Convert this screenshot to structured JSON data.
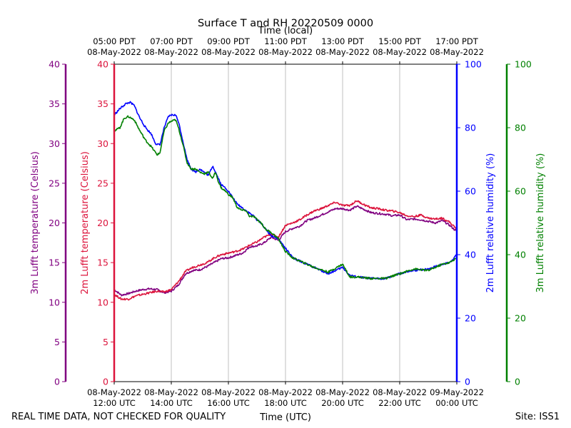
{
  "chart_data": {
    "type": "line",
    "title": "Surface T and RH 20220509 0000",
    "top_axis_label": "Time (local)",
    "bottom_axis_label": "Time (UTC)",
    "footer_left": "REAL TIME DATA, NOT CHECKED FOR QUALITY",
    "footer_right": "Site: ISS1",
    "x_range_hours": [
      0,
      12
    ],
    "bottom_ticks": [
      {
        "h": 0,
        "date": "08-May-2022",
        "time": "12:00 UTC"
      },
      {
        "h": 2,
        "date": "08-May-2022",
        "time": "14:00 UTC"
      },
      {
        "h": 4,
        "date": "08-May-2022",
        "time": "16:00 UTC"
      },
      {
        "h": 6,
        "date": "08-May-2022",
        "time": "18:00 UTC"
      },
      {
        "h": 8,
        "date": "08-May-2022",
        "time": "20:00 UTC"
      },
      {
        "h": 10,
        "date": "08-May-2022",
        "time": "22:00 UTC"
      },
      {
        "h": 12,
        "date": "09-May-2022",
        "time": "00:00 UTC"
      }
    ],
    "top_ticks": [
      {
        "h": 0,
        "time": "05:00 PDT",
        "date": "08-May-2022"
      },
      {
        "h": 2,
        "time": "07:00 PDT",
        "date": "08-May-2022"
      },
      {
        "h": 4,
        "time": "09:00 PDT",
        "date": "08-May-2022"
      },
      {
        "h": 6,
        "time": "11:00 PDT",
        "date": "08-May-2022"
      },
      {
        "h": 8,
        "time": "13:00 PDT",
        "date": "08-May-2022"
      },
      {
        "h": 10,
        "time": "15:00 PDT",
        "date": "08-May-2022"
      },
      {
        "h": 12,
        "time": "17:00 PDT",
        "date": "08-May-2022"
      }
    ],
    "axes": {
      "t3m": {
        "label": "3m Lufft temperature (Celsius)",
        "color": "#800080",
        "ylim": [
          0,
          40
        ],
        "ticks": [
          "0",
          "5",
          "10",
          "15",
          "20",
          "25",
          "30",
          "35",
          "40"
        ]
      },
      "t2m": {
        "label": "2m Lufft temperature (Celsius)",
        "color": "#dc143c",
        "ylim": [
          0,
          40
        ],
        "ticks": [
          "0",
          "5",
          "10",
          "15",
          "20",
          "25",
          "30",
          "35",
          "40"
        ]
      },
      "rh2m": {
        "label": "2m Lufft relative humidity (%)",
        "color": "#0000ff",
        "ylim": [
          0,
          100
        ],
        "ticks": [
          "0",
          "20",
          "40",
          "60",
          "80",
          "100"
        ]
      },
      "rh3m": {
        "label": "3m Lufft relative humidity (%)",
        "color": "#008000",
        "ylim": [
          0,
          100
        ],
        "ticks": [
          "0",
          "20",
          "40",
          "60",
          "80",
          "100"
        ]
      }
    },
    "series": [
      {
        "name": "3m Lufft temperature",
        "axis": "t3m",
        "color": "#800080",
        "points": [
          [
            0,
            11.6
          ],
          [
            0.25,
            10.9
          ],
          [
            0.5,
            11.1
          ],
          [
            0.75,
            11.4
          ],
          [
            1.0,
            11.6
          ],
          [
            1.25,
            11.7
          ],
          [
            1.5,
            11.6
          ],
          [
            1.75,
            11.2
          ],
          [
            2.0,
            11.4
          ],
          [
            2.25,
            12.2
          ],
          [
            2.5,
            13.6
          ],
          [
            2.75,
            14.0
          ],
          [
            3.0,
            14.1
          ],
          [
            3.25,
            14.5
          ],
          [
            3.5,
            15.0
          ],
          [
            3.75,
            15.5
          ],
          [
            4.0,
            15.6
          ],
          [
            4.25,
            15.9
          ],
          [
            4.5,
            16.2
          ],
          [
            4.75,
            17.0
          ],
          [
            5.0,
            17.1
          ],
          [
            5.25,
            17.5
          ],
          [
            5.5,
            18.2
          ],
          [
            5.75,
            17.8
          ],
          [
            6.0,
            18.9
          ],
          [
            6.25,
            19.3
          ],
          [
            6.5,
            19.6
          ],
          [
            6.75,
            20.3
          ],
          [
            7.0,
            20.6
          ],
          [
            7.25,
            21.0
          ],
          [
            7.5,
            21.4
          ],
          [
            7.75,
            21.8
          ],
          [
            8.0,
            21.8
          ],
          [
            8.25,
            21.6
          ],
          [
            8.5,
            22.1
          ],
          [
            8.75,
            21.7
          ],
          [
            9.0,
            21.3
          ],
          [
            9.25,
            21.2
          ],
          [
            9.5,
            21.1
          ],
          [
            9.75,
            20.9
          ],
          [
            10.0,
            21.0
          ],
          [
            10.25,
            20.4
          ],
          [
            10.5,
            20.5
          ],
          [
            10.75,
            20.4
          ],
          [
            11.0,
            20.2
          ],
          [
            11.25,
            20.0
          ],
          [
            11.5,
            20.3
          ],
          [
            11.75,
            19.7
          ],
          [
            12.0,
            18.9
          ]
        ]
      },
      {
        "name": "2m Lufft temperature",
        "axis": "t2m",
        "color": "#dc143c",
        "points": [
          [
            0,
            11.0
          ],
          [
            0.25,
            10.4
          ],
          [
            0.5,
            10.4
          ],
          [
            0.75,
            10.8
          ],
          [
            1.0,
            11.0
          ],
          [
            1.25,
            11.2
          ],
          [
            1.5,
            11.4
          ],
          [
            1.75,
            11.3
          ],
          [
            2.0,
            11.6
          ],
          [
            2.25,
            12.6
          ],
          [
            2.5,
            13.9
          ],
          [
            2.75,
            14.4
          ],
          [
            3.0,
            14.7
          ],
          [
            3.25,
            15.0
          ],
          [
            3.5,
            15.6
          ],
          [
            3.75,
            16.0
          ],
          [
            4.0,
            16.2
          ],
          [
            4.25,
            16.4
          ],
          [
            4.5,
            16.7
          ],
          [
            4.75,
            17.2
          ],
          [
            5.0,
            17.6
          ],
          [
            5.25,
            18.2
          ],
          [
            5.5,
            18.6
          ],
          [
            5.75,
            18.2
          ],
          [
            6.0,
            19.7
          ],
          [
            6.25,
            20.0
          ],
          [
            6.5,
            20.4
          ],
          [
            6.75,
            21.0
          ],
          [
            7.0,
            21.5
          ],
          [
            7.25,
            21.8
          ],
          [
            7.5,
            22.2
          ],
          [
            7.75,
            22.6
          ],
          [
            8.0,
            22.2
          ],
          [
            8.25,
            22.2
          ],
          [
            8.5,
            22.8
          ],
          [
            8.75,
            22.3
          ],
          [
            9.0,
            21.9
          ],
          [
            9.25,
            21.8
          ],
          [
            9.5,
            21.6
          ],
          [
            9.75,
            21.5
          ],
          [
            10.0,
            21.3
          ],
          [
            10.25,
            20.9
          ],
          [
            10.5,
            20.8
          ],
          [
            10.75,
            21.0
          ],
          [
            11.0,
            20.6
          ],
          [
            11.25,
            20.5
          ],
          [
            11.5,
            20.6
          ],
          [
            11.75,
            20.1
          ],
          [
            12.0,
            19.2
          ]
        ]
      },
      {
        "name": "2m Lufft relative humidity",
        "axis": "rh2m",
        "color": "#0000ff",
        "points": [
          [
            0,
            84
          ],
          [
            0.2,
            86
          ],
          [
            0.4,
            87.5
          ],
          [
            0.55,
            88
          ],
          [
            0.7,
            87
          ],
          [
            0.9,
            83
          ],
          [
            1.1,
            80
          ],
          [
            1.3,
            78
          ],
          [
            1.45,
            75
          ],
          [
            1.6,
            74.5
          ],
          [
            1.75,
            80
          ],
          [
            1.9,
            83.5
          ],
          [
            2.0,
            84
          ],
          [
            2.15,
            84
          ],
          [
            2.25,
            82
          ],
          [
            2.4,
            76
          ],
          [
            2.55,
            70
          ],
          [
            2.7,
            67
          ],
          [
            2.85,
            66
          ],
          [
            3.0,
            67
          ],
          [
            3.15,
            66
          ],
          [
            3.3,
            65
          ],
          [
            3.45,
            68
          ],
          [
            3.55,
            66
          ],
          [
            3.65,
            64
          ],
          [
            3.75,
            62
          ],
          [
            3.9,
            61
          ],
          [
            4.0,
            60
          ],
          [
            4.15,
            58
          ],
          [
            4.3,
            56
          ],
          [
            4.45,
            55
          ],
          [
            4.6,
            54
          ],
          [
            4.75,
            53
          ],
          [
            4.9,
            52
          ],
          [
            5.0,
            51
          ],
          [
            5.15,
            50
          ],
          [
            5.3,
            48
          ],
          [
            5.5,
            46
          ],
          [
            5.75,
            45
          ],
          [
            6.0,
            42
          ],
          [
            6.25,
            39
          ],
          [
            6.5,
            38
          ],
          [
            7.0,
            36
          ],
          [
            7.5,
            34
          ],
          [
            8.0,
            36
          ],
          [
            8.25,
            33.5
          ],
          [
            8.5,
            33
          ],
          [
            9.0,
            32.5
          ],
          [
            9.5,
            32.5
          ],
          [
            10.0,
            34
          ],
          [
            10.5,
            35
          ],
          [
            11.0,
            35.5
          ],
          [
            11.5,
            37
          ],
          [
            11.75,
            37.5
          ],
          [
            12.0,
            40
          ]
        ]
      },
      {
        "name": "3m Lufft relative humidity",
        "axis": "rh3m",
        "color": "#008000",
        "points": [
          [
            0,
            79
          ],
          [
            0.2,
            80
          ],
          [
            0.35,
            83
          ],
          [
            0.5,
            83.5
          ],
          [
            0.7,
            82.5
          ],
          [
            0.9,
            79
          ],
          [
            1.1,
            76
          ],
          [
            1.3,
            74
          ],
          [
            1.5,
            71.5
          ],
          [
            1.6,
            72
          ],
          [
            1.75,
            79
          ],
          [
            1.9,
            81.5
          ],
          [
            2.0,
            82
          ],
          [
            2.15,
            82.5
          ],
          [
            2.25,
            80
          ],
          [
            2.4,
            75
          ],
          [
            2.55,
            69
          ],
          [
            2.7,
            67
          ],
          [
            2.85,
            67
          ],
          [
            3.0,
            66
          ],
          [
            3.15,
            65.5
          ],
          [
            3.3,
            66
          ],
          [
            3.45,
            64
          ],
          [
            3.55,
            66
          ],
          [
            3.65,
            63
          ],
          [
            3.75,
            61
          ],
          [
            3.9,
            60
          ],
          [
            4.0,
            59
          ],
          [
            4.15,
            58
          ],
          [
            4.3,
            55
          ],
          [
            4.45,
            54
          ],
          [
            4.6,
            54
          ],
          [
            4.75,
            52
          ],
          [
            4.9,
            52
          ],
          [
            5.0,
            51
          ],
          [
            5.15,
            50
          ],
          [
            5.3,
            48
          ],
          [
            5.5,
            47
          ],
          [
            5.75,
            45
          ],
          [
            6.0,
            41
          ],
          [
            6.25,
            39
          ],
          [
            6.5,
            38
          ],
          [
            7.0,
            36
          ],
          [
            7.5,
            34.5
          ],
          [
            8.0,
            37
          ],
          [
            8.25,
            33
          ],
          [
            8.5,
            33
          ],
          [
            9.0,
            32.5
          ],
          [
            9.5,
            32.5
          ],
          [
            10.0,
            34
          ],
          [
            10.5,
            35.5
          ],
          [
            11.0,
            35
          ],
          [
            11.5,
            37
          ],
          [
            11.75,
            37.5
          ],
          [
            12.0,
            39
          ]
        ]
      }
    ]
  }
}
